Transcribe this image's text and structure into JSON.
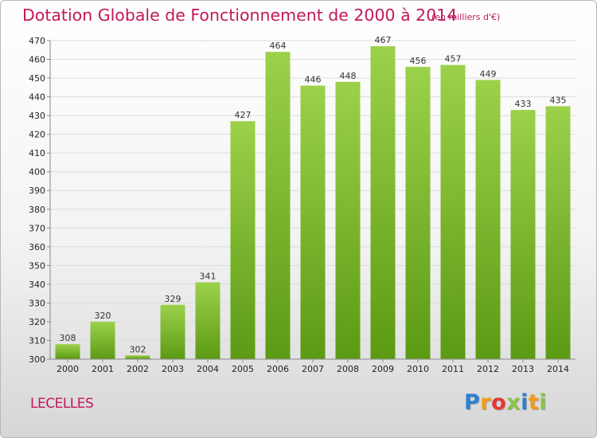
{
  "title": "Dotation Globale de Fonctionnement de 2000 à 2014",
  "unit_note": "(en milliers d'€)",
  "place": "LECELLES",
  "brand": {
    "letters": [
      "P",
      "r",
      "o",
      "x",
      "i",
      "t",
      "i"
    ],
    "colors": [
      "#2e7fd3",
      "#f39c12",
      "#e53935",
      "#8bc34a",
      "#2e7fd3",
      "#f39c12",
      "#8bc34a"
    ]
  },
  "colors": {
    "bar_top": "#9cd14a",
    "bar_bottom": "#5c9a14",
    "title": "#c2185b"
  },
  "chart_data": {
    "type": "bar",
    "title": "Dotation Globale de Fonctionnement de 2000 à 2014",
    "categories": [
      "2000",
      "2001",
      "2002",
      "2003",
      "2004",
      "2005",
      "2006",
      "2007",
      "2008",
      "2009",
      "2010",
      "2011",
      "2012",
      "2013",
      "2014"
    ],
    "values": [
      308,
      320,
      302,
      329,
      341,
      427,
      464,
      446,
      448,
      467,
      456,
      457,
      449,
      433,
      435
    ],
    "ylim": [
      300,
      470
    ],
    "yticks": [
      300,
      310,
      320,
      330,
      340,
      350,
      360,
      370,
      380,
      390,
      400,
      410,
      420,
      430,
      440,
      450,
      460,
      470
    ],
    "xlabel": "",
    "ylabel": "",
    "grid": true,
    "legend": "none"
  }
}
